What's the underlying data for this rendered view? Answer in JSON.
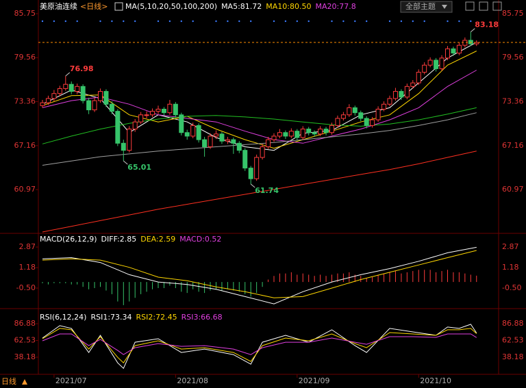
{
  "header": {
    "title": "美原油连续",
    "period": "<日线>",
    "theme_button": "全部主题",
    "footer_period": "日线"
  },
  "chart_data": [
    {
      "type": "candlestick",
      "legend": [
        {
          "text": "MA(5,10,20,50,100,200)",
          "color": "#ffffff"
        },
        {
          "text": "MA5:81.72",
          "color": "#ffffff"
        },
        {
          "text": "MA10:80.50",
          "color": "#ffd700"
        },
        {
          "text": "MA20:77.8",
          "color": "#e040e0"
        }
      ],
      "ylim": [
        54.9,
        85.75
      ],
      "yticks": [
        60.97,
        67.16,
        73.36,
        79.56,
        85.75
      ],
      "categories": [
        null,
        null,
        "2021/07",
        null,
        null,
        null,
        null,
        null,
        null,
        null,
        null,
        null,
        null,
        null,
        null,
        null,
        null,
        null,
        null,
        null,
        null,
        null,
        null,
        "2021/08",
        null,
        null,
        null,
        null,
        null,
        null,
        null,
        null,
        null,
        null,
        null,
        null,
        null,
        null,
        null,
        null,
        null,
        null,
        null,
        null,
        "2021/09",
        null,
        null,
        null,
        null,
        null,
        null,
        null,
        null,
        null,
        null,
        null,
        null,
        null,
        null,
        null,
        null,
        null,
        null,
        null,
        null,
        "2021/10",
        null,
        null,
        null,
        null,
        null,
        null,
        null,
        null,
        null,
        null
      ],
      "up_color": "#ff3c3c",
      "down_color": "#36c46a",
      "ohlc": [
        [
          72.8,
          73.6,
          72.5,
          73.2
        ],
        [
          73.2,
          74.2,
          72.9,
          73.8
        ],
        [
          73.8,
          75.0,
          73.4,
          74.5
        ],
        [
          74.5,
          75.6,
          74.1,
          75.2
        ],
        [
          75.2,
          76.98,
          74.9,
          75.8
        ],
        [
          75.8,
          76.2,
          74.4,
          74.8
        ],
        [
          74.8,
          75.9,
          74.4,
          75.5
        ],
        [
          75.5,
          75.8,
          73.1,
          73.5
        ],
        [
          73.5,
          73.9,
          71.6,
          72.2
        ],
        [
          72.2,
          73.9,
          71.9,
          73.5
        ],
        [
          73.5,
          75.2,
          73.2,
          74.8
        ],
        [
          74.8,
          75.1,
          72.6,
          73.0
        ],
        [
          73.0,
          73.4,
          71.6,
          72.0
        ],
        [
          72.0,
          72.3,
          67.1,
          67.5
        ],
        [
          67.5,
          68.0,
          65.01,
          66.5
        ],
        [
          66.5,
          69.9,
          66.2,
          69.5
        ],
        [
          69.5,
          70.9,
          69.1,
          70.5
        ],
        [
          70.5,
          71.9,
          70.2,
          71.5
        ],
        [
          71.5,
          72.0,
          71.0,
          71.5
        ],
        [
          71.5,
          72.4,
          71.2,
          72.0
        ],
        [
          72.0,
          72.8,
          71.6,
          72.3
        ],
        [
          72.3,
          72.6,
          71.4,
          71.8
        ],
        [
          71.8,
          73.6,
          71.5,
          73.0
        ],
        [
          73.0,
          73.3,
          71.1,
          71.5
        ],
        [
          71.5,
          71.8,
          68.6,
          69.0
        ],
        [
          69.0,
          69.4,
          68.0,
          68.5
        ],
        [
          68.5,
          70.4,
          68.2,
          70.0
        ],
        [
          70.0,
          70.3,
          67.6,
          68.0
        ],
        [
          68.0,
          68.4,
          65.6,
          67.0
        ],
        [
          67.0,
          68.9,
          66.7,
          68.5
        ],
        [
          68.5,
          69.3,
          68.1,
          68.8
        ],
        [
          68.8,
          69.1,
          67.4,
          67.8
        ],
        [
          67.8,
          68.4,
          67.4,
          68.0
        ],
        [
          68.0,
          68.3,
          66.0,
          67.5
        ],
        [
          67.5,
          67.8,
          66.1,
          66.5
        ],
        [
          66.5,
          66.8,
          63.6,
          64.0
        ],
        [
          64.0,
          64.3,
          61.74,
          62.5
        ],
        [
          62.5,
          65.9,
          62.2,
          65.5
        ],
        [
          65.5,
          67.4,
          65.2,
          67.0
        ],
        [
          67.0,
          68.4,
          66.7,
          68.0
        ],
        [
          68.0,
          68.9,
          67.7,
          68.5
        ],
        [
          68.5,
          69.5,
          68.2,
          69.0
        ],
        [
          69.0,
          69.3,
          68.1,
          68.5
        ],
        [
          68.5,
          69.6,
          68.2,
          69.2
        ],
        [
          69.2,
          69.5,
          67.9,
          68.3
        ],
        [
          68.3,
          69.9,
          68.0,
          69.5
        ],
        [
          69.5,
          69.8,
          68.6,
          69.0
        ],
        [
          69.0,
          69.3,
          68.4,
          68.8
        ],
        [
          68.8,
          69.9,
          68.5,
          69.5
        ],
        [
          69.5,
          69.8,
          68.6,
          69.0
        ],
        [
          69.0,
          70.4,
          68.7,
          70.0
        ],
        [
          70.0,
          71.4,
          69.7,
          71.0
        ],
        [
          71.0,
          71.9,
          70.7,
          71.5
        ],
        [
          71.5,
          73.0,
          71.2,
          72.5
        ],
        [
          72.5,
          72.8,
          71.4,
          71.8
        ],
        [
          71.8,
          72.1,
          70.6,
          71.0
        ],
        [
          71.0,
          71.3,
          69.6,
          70.0
        ],
        [
          70.0,
          71.2,
          69.7,
          70.8
        ],
        [
          70.8,
          72.7,
          70.5,
          72.3
        ],
        [
          72.3,
          73.4,
          72.0,
          73.0
        ],
        [
          73.0,
          74.2,
          72.7,
          73.8
        ],
        [
          73.8,
          75.3,
          73.5,
          74.8
        ],
        [
          74.8,
          75.1,
          73.6,
          74.0
        ],
        [
          74.0,
          75.9,
          73.7,
          75.5
        ],
        [
          75.5,
          76.4,
          75.2,
          76.0
        ],
        [
          76.0,
          77.9,
          75.7,
          77.5
        ],
        [
          77.5,
          78.9,
          77.2,
          78.5
        ],
        [
          78.5,
          79.6,
          78.2,
          79.2
        ],
        [
          79.2,
          79.5,
          77.6,
          78.0
        ],
        [
          78.0,
          79.9,
          77.7,
          79.5
        ],
        [
          79.5,
          81.2,
          79.2,
          80.8
        ],
        [
          80.8,
          81.1,
          79.8,
          80.2
        ],
        [
          80.2,
          81.7,
          79.9,
          81.3
        ],
        [
          81.3,
          82.4,
          81.0,
          82.0
        ],
        [
          82.0,
          83.18,
          81.2,
          81.5
        ],
        [
          81.5,
          82.0,
          81.2,
          81.7
        ]
      ],
      "annotations": [
        {
          "x": 4,
          "y": 76.98,
          "color": "#ff3c3c"
        },
        {
          "x": 14,
          "y": 65.01,
          "color": "#36c46a"
        },
        {
          "x": 36,
          "y": 61.74,
          "color": "#36c46a"
        },
        {
          "x": 74,
          "y": 83.18,
          "color": "#ff3c3c"
        }
      ],
      "series": [
        {
          "color": "#ffffff",
          "x": [
            0,
            5,
            10,
            15,
            20,
            25,
            30,
            35,
            40,
            45,
            50,
            55,
            60,
            65,
            70,
            75
          ],
          "values": [
            73.0,
            75.0,
            73.8,
            69.0,
            71.5,
            70.5,
            68.3,
            67.0,
            66.5,
            68.9,
            69.3,
            71.5,
            72.5,
            76.0,
            79.5,
            81.72
          ]
        },
        {
          "color": "#ffd700",
          "x": [
            0,
            5,
            10,
            15,
            20,
            25,
            30,
            35,
            40,
            45,
            50,
            55,
            60,
            65,
            70,
            75
          ],
          "values": [
            72.8,
            74.2,
            74.3,
            71.5,
            70.5,
            71.3,
            69.5,
            68.0,
            66.8,
            68.0,
            69.2,
            70.5,
            71.5,
            74.5,
            78.5,
            80.5
          ]
        },
        {
          "color": "#e040e0",
          "x": [
            0,
            5,
            10,
            15,
            20,
            25,
            30,
            35,
            40,
            45,
            50,
            55,
            60,
            65,
            70,
            75
          ],
          "values": [
            72.5,
            73.5,
            74.0,
            73.0,
            71.5,
            71.0,
            70.5,
            69.2,
            68.0,
            67.5,
            68.5,
            69.5,
            70.8,
            72.5,
            75.5,
            77.8
          ]
        },
        {
          "color": "#22c022",
          "x": [
            0,
            5,
            10,
            15,
            20,
            25,
            30,
            35,
            40,
            45,
            50,
            55,
            60,
            65,
            70,
            75
          ],
          "values": [
            67.4,
            68.5,
            69.5,
            70.3,
            70.9,
            71.3,
            71.4,
            71.2,
            70.9,
            70.5,
            70.1,
            69.9,
            70.2,
            70.8,
            71.6,
            72.5
          ]
        },
        {
          "color": "#a0a0a0",
          "x": [
            0,
            5,
            10,
            15,
            20,
            25,
            30,
            35,
            40,
            45,
            50,
            55,
            60,
            65,
            70,
            75
          ],
          "values": [
            64.4,
            65.0,
            65.6,
            66.0,
            66.4,
            66.7,
            67.0,
            67.3,
            67.6,
            68.0,
            68.4,
            68.8,
            69.3,
            70.0,
            70.8,
            71.8
          ]
        },
        {
          "color": "#ff3020",
          "x": [
            0,
            5,
            10,
            15,
            20,
            25,
            30,
            35,
            40,
            45,
            50,
            55,
            60,
            65,
            70,
            75
          ],
          "values": [
            55.0,
            55.8,
            56.6,
            57.4,
            58.2,
            58.9,
            59.6,
            60.3,
            61.0,
            61.7,
            62.4,
            63.1,
            63.8,
            64.6,
            65.5,
            66.4
          ]
        }
      ]
    },
    {
      "type": "macd",
      "legend": [
        {
          "text": "MACD(26,12,9)",
          "color": "#ffffff"
        },
        {
          "text": "DIFF:2.85",
          "color": "#ffffff"
        },
        {
          "text": "DEA:2.59",
          "color": "#ffd700"
        },
        {
          "text": "MACD:0.52",
          "color": "#e040e0"
        }
      ],
      "ylim": [
        -2.13,
        3.77
      ],
      "yticks": [
        {
          "value": -0.5,
          "label": "-0.50"
        },
        1.18,
        2.87
      ],
      "up_color": "#ff3c3c",
      "down_color": "#36c46a",
      "histogram": [
        -0.1,
        -0.2,
        -0.1,
        -0.1,
        -0.1,
        -0.2,
        -0.2,
        -0.4,
        -0.6,
        -0.5,
        -0.4,
        -0.7,
        -1.0,
        -1.6,
        -1.9,
        -1.6,
        -1.3,
        -1.0,
        -0.8,
        -0.6,
        -0.5,
        -0.5,
        -0.3,
        -0.5,
        -0.8,
        -0.9,
        -0.6,
        -0.8,
        -0.9,
        -0.7,
        -0.6,
        -0.7,
        -0.6,
        -0.7,
        -0.8,
        -1.0,
        -1.2,
        -0.9,
        -0.4,
        0.2,
        0.5,
        0.7,
        0.7,
        0.8,
        0.6,
        0.7,
        0.6,
        0.5,
        0.6,
        0.5,
        0.6,
        0.7,
        0.7,
        0.8,
        0.6,
        0.5,
        0.3,
        0.4,
        0.6,
        0.7,
        0.8,
        0.9,
        0.7,
        0.8,
        0.9,
        1.0,
        1.0,
        1.0,
        0.8,
        0.9,
        1.0,
        0.8,
        0.8,
        0.7,
        0.6,
        0.52
      ],
      "series": [
        {
          "color": "#ffffff",
          "x": [
            0,
            5,
            10,
            15,
            20,
            25,
            30,
            35,
            40,
            45,
            50,
            55,
            60,
            65,
            70,
            75
          ],
          "values": [
            1.9,
            2.0,
            1.6,
            0.6,
            0.0,
            -0.2,
            -0.6,
            -1.2,
            -1.8,
            -0.8,
            0.0,
            0.6,
            1.1,
            1.7,
            2.4,
            2.85
          ]
        },
        {
          "color": "#ffd700",
          "x": [
            0,
            5,
            10,
            15,
            20,
            25,
            30,
            35,
            40,
            45,
            50,
            55,
            60,
            65,
            70,
            75
          ],
          "values": [
            1.8,
            1.9,
            1.8,
            1.2,
            0.4,
            0.1,
            -0.4,
            -0.8,
            -1.3,
            -1.2,
            -0.5,
            0.2,
            0.8,
            1.4,
            2.0,
            2.59
          ]
        }
      ]
    },
    {
      "type": "rsi",
      "legend": [
        {
          "text": "RSI(6,12,24)",
          "color": "#ffffff"
        },
        {
          "text": "RSI1:73.34",
          "color": "#ffffff"
        },
        {
          "text": "RSI2:72.45",
          "color": "#ffd700"
        },
        {
          "text": "RSI3:66.68",
          "color": "#e040e0"
        }
      ],
      "ylim": [
        15.3,
        104.8
      ],
      "yticks": [
        38.18,
        62.53,
        86.88
      ],
      "series": [
        {
          "color": "#ffffff",
          "x": [
            0,
            3,
            5,
            8,
            10,
            13,
            14,
            16,
            20,
            24,
            28,
            33,
            36,
            38,
            42,
            46,
            50,
            54,
            56,
            60,
            64,
            68,
            70,
            72,
            74,
            75
          ],
          "values": [
            66,
            84,
            80,
            45,
            70,
            30,
            22,
            60,
            65,
            45,
            50,
            42,
            28,
            60,
            70,
            60,
            78,
            55,
            45,
            80,
            75,
            70,
            82,
            80,
            86,
            73.34
          ]
        },
        {
          "color": "#ffd700",
          "x": [
            0,
            3,
            5,
            8,
            10,
            13,
            14,
            16,
            20,
            24,
            28,
            33,
            36,
            38,
            42,
            46,
            50,
            54,
            56,
            60,
            64,
            68,
            70,
            72,
            74,
            75
          ],
          "values": [
            65,
            80,
            78,
            50,
            68,
            38,
            30,
            55,
            62,
            50,
            52,
            45,
            32,
            55,
            66,
            62,
            72,
            58,
            52,
            74,
            72,
            70,
            78,
            78,
            80,
            72.45
          ]
        },
        {
          "color": "#e040e0",
          "x": [
            0,
            3,
            5,
            8,
            10,
            13,
            14,
            16,
            20,
            24,
            28,
            33,
            36,
            38,
            42,
            46,
            50,
            54,
            56,
            60,
            64,
            68,
            70,
            72,
            74,
            75
          ],
          "values": [
            62,
            72,
            72,
            55,
            64,
            48,
            42,
            52,
            58,
            54,
            55,
            50,
            42,
            52,
            60,
            60,
            66,
            60,
            57,
            68,
            68,
            67,
            72,
            72,
            72,
            66.68
          ]
        }
      ]
    }
  ]
}
